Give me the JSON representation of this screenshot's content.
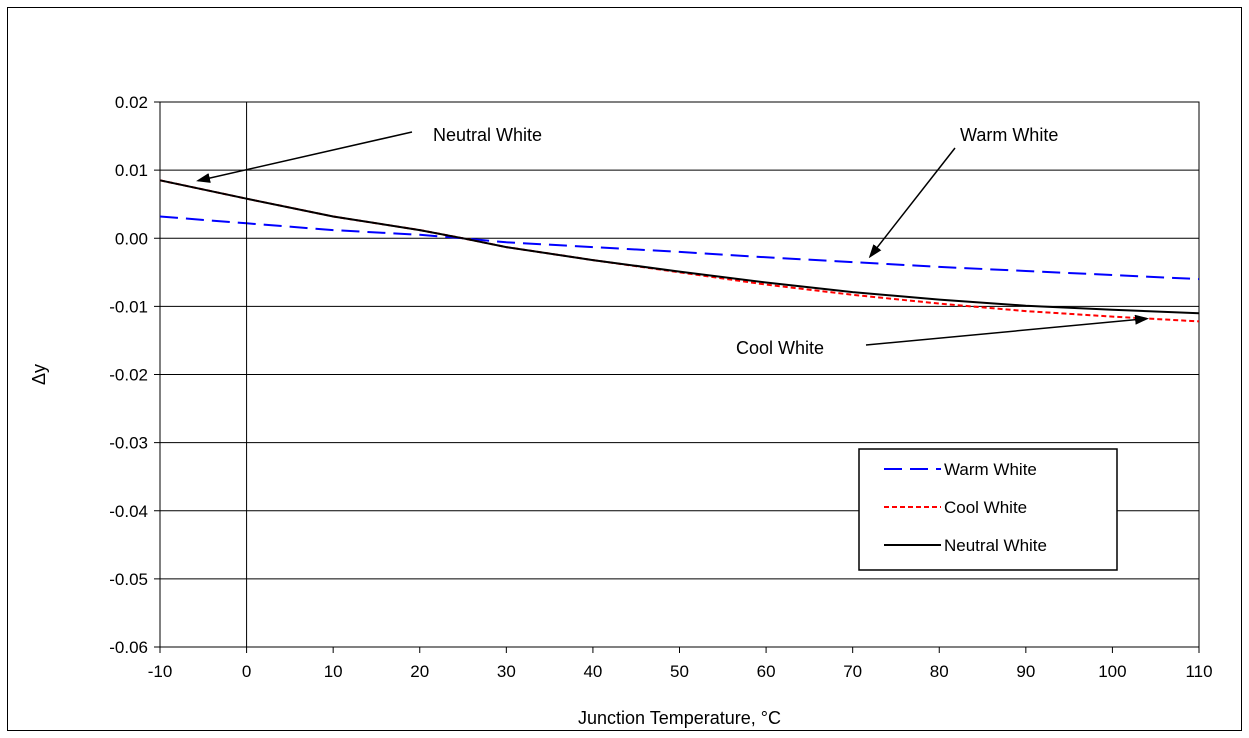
{
  "chart_data": {
    "type": "line",
    "xlabel": "Junction Temperature, °C",
    "ylabel": "Δy",
    "xlim": [
      -10,
      110
    ],
    "ylim": [
      -0.06,
      0.02
    ],
    "xticks": [
      -10,
      0,
      10,
      20,
      30,
      40,
      50,
      60,
      70,
      80,
      90,
      100,
      110
    ],
    "xtick_labels": [
      "-10",
      "0",
      "10",
      "20",
      "30",
      "40",
      "50",
      "60",
      "70",
      "80",
      "90",
      "100",
      "110"
    ],
    "yticks": [
      0.02,
      0.01,
      0.0,
      -0.01,
      -0.02,
      -0.03,
      -0.04,
      -0.05,
      -0.06
    ],
    "ytick_labels": [
      "0.02",
      "0.01",
      "0.00",
      "-0.01",
      "-0.02",
      "-0.03",
      "-0.04",
      "-0.05",
      "-0.06"
    ],
    "grid": "horizontal",
    "legend_position": "lower-right",
    "x": [
      -10,
      0,
      10,
      20,
      25,
      30,
      40,
      50,
      60,
      70,
      80,
      90,
      100,
      110
    ],
    "series": [
      {
        "name": "Warm White",
        "color": "#0000ff",
        "style": "dashed",
        "values": [
          0.0032,
          0.0022,
          0.0012,
          0.0005,
          0.0,
          -0.0006,
          -0.0013,
          -0.002,
          -0.0028,
          -0.0035,
          -0.0042,
          -0.0048,
          -0.0054,
          -0.006
        ]
      },
      {
        "name": "Cool White",
        "color": "#ff0000",
        "style": "dotted",
        "values": [
          0.0085,
          0.0058,
          0.0032,
          0.0012,
          0.0,
          -0.0013,
          -0.0032,
          -0.005,
          -0.0068,
          -0.0083,
          -0.0096,
          -0.0107,
          -0.0115,
          -0.0122
        ]
      },
      {
        "name": "Neutral White",
        "color": "#000000",
        "style": "solid",
        "values": [
          0.0085,
          0.0058,
          0.0032,
          0.0012,
          0.0,
          -0.0013,
          -0.0032,
          -0.0049,
          -0.0065,
          -0.0079,
          -0.009,
          -0.0099,
          -0.0105,
          -0.011
        ]
      }
    ],
    "annotations": [
      {
        "text": "Neutral White",
        "target_x": -10,
        "target_y": 0.0083
      },
      {
        "text": "Warm White",
        "target_x": 72,
        "target_y": -0.0027
      },
      {
        "text": "Cool White",
        "target_x": 104,
        "target_y": -0.0118
      }
    ]
  }
}
